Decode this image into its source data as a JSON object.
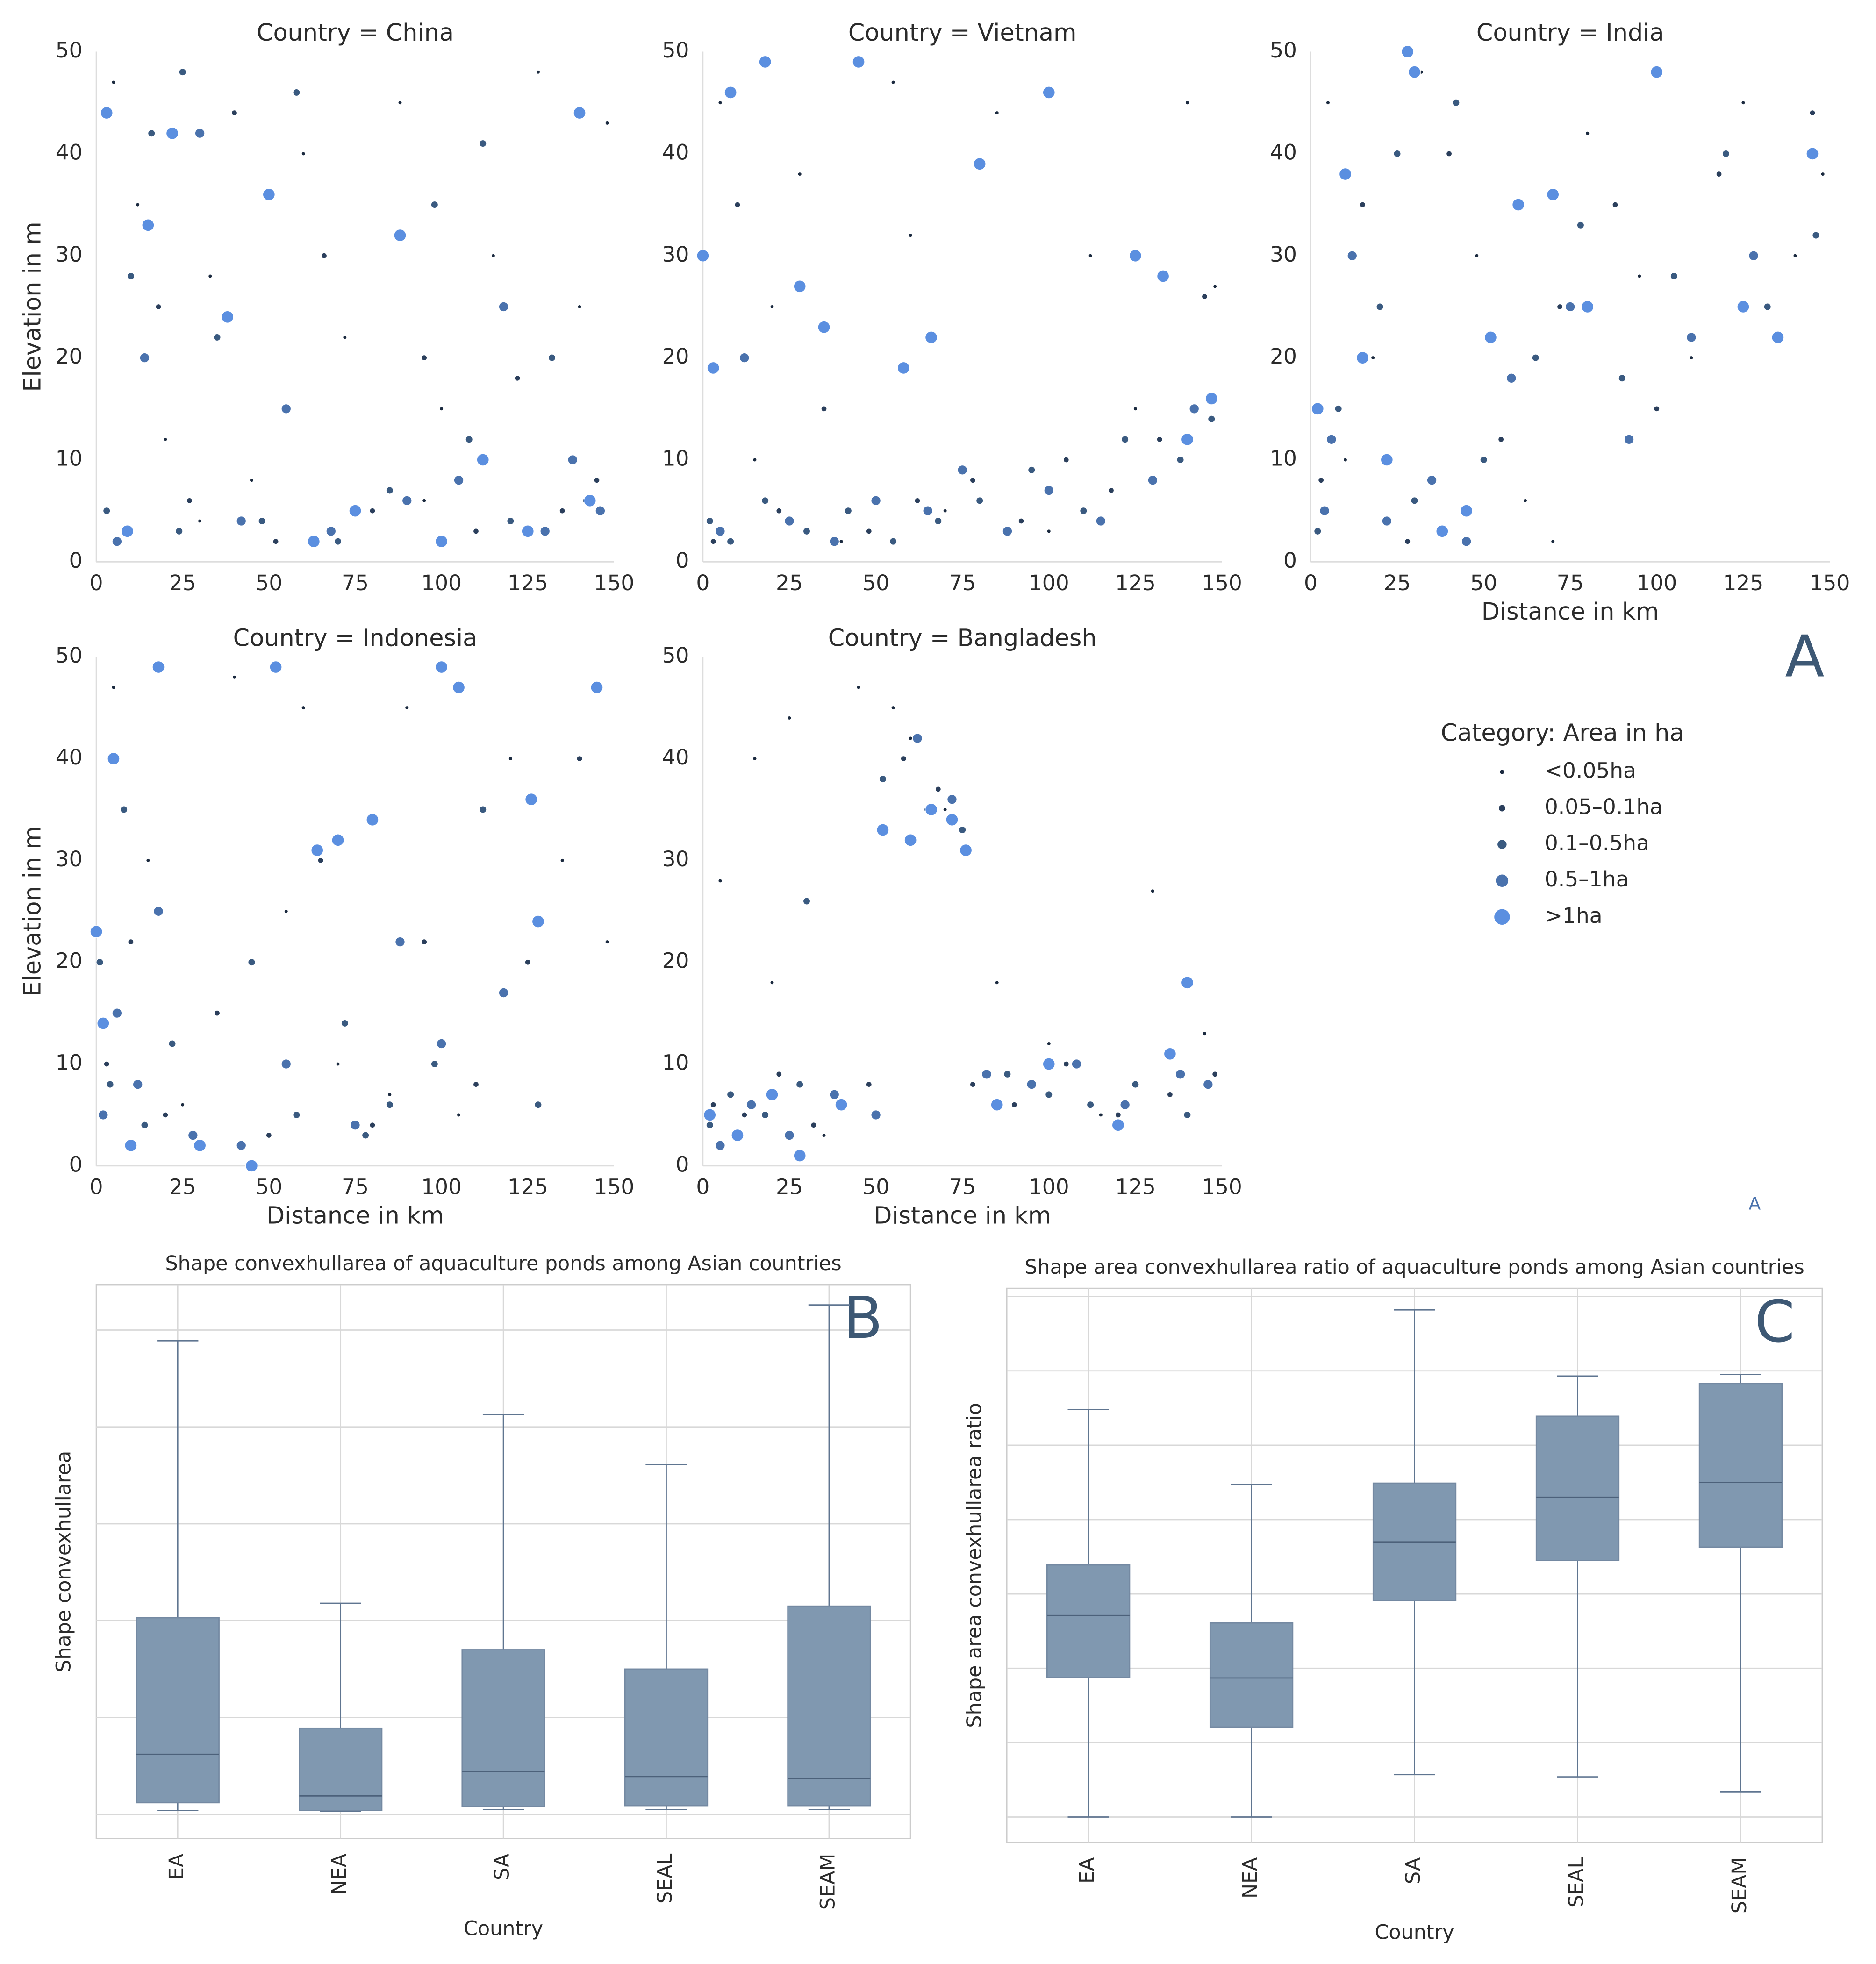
{
  "panel_label": "A",
  "footnote": "A",
  "chart_data": [
    {
      "type": "scatter",
      "title": "Country = China",
      "ylabel": "Elevation in m",
      "xlim": [
        0,
        150
      ],
      "ylim": [
        0,
        50
      ],
      "xticks": [
        0,
        25,
        50,
        75,
        100,
        125,
        150
      ],
      "yticks": [
        0,
        10,
        20,
        30,
        40,
        50
      ],
      "grid": false,
      "legend_title": "Category: Area in ha",
      "series": [
        {
          "name": "<0.05ha",
          "color": "#1b2a3f",
          "x": [
            5,
            12,
            20,
            33,
            45,
            60,
            72,
            88,
            100,
            115,
            128,
            140,
            148,
            30,
            95
          ],
          "y": [
            47,
            35,
            12,
            28,
            8,
            40,
            22,
            45,
            15,
            30,
            48,
            25,
            43,
            4,
            6
          ]
        },
        {
          "name": "0.05–0.1ha",
          "color": "#2b3f5c",
          "x": [
            8,
            18,
            27,
            40,
            52,
            66,
            80,
            95,
            110,
            122,
            135,
            145
          ],
          "y": [
            3,
            25,
            6,
            44,
            2,
            30,
            5,
            20,
            3,
            18,
            5,
            8
          ]
        },
        {
          "name": "0.1–0.5ha",
          "color": "#3a5a80",
          "x": [
            3,
            10,
            16,
            24,
            35,
            48,
            58,
            70,
            85,
            98,
            108,
            120,
            132,
            142,
            25,
            112
          ],
          "y": [
            5,
            28,
            42,
            3,
            22,
            4,
            46,
            2,
            7,
            35,
            12,
            4,
            20,
            6,
            48,
            41
          ]
        },
        {
          "name": "0.5–1ha",
          "color": "#4a72ad",
          "x": [
            6,
            14,
            30,
            42,
            55,
            68,
            90,
            105,
            118,
            130,
            138,
            146
          ],
          "y": [
            2,
            20,
            42,
            4,
            15,
            3,
            6,
            8,
            25,
            3,
            10,
            5
          ]
        },
        {
          "name": ">1ha",
          "color": "#5b8fe0",
          "x": [
            3,
            9,
            15,
            22,
            38,
            50,
            63,
            75,
            88,
            100,
            112,
            125,
            140,
            143
          ],
          "y": [
            44,
            3,
            33,
            42,
            24,
            36,
            2,
            5,
            32,
            2,
            10,
            3,
            44,
            6
          ]
        }
      ]
    },
    {
      "type": "scatter",
      "title": "Country = Vietnam",
      "xlim": [
        0,
        150
      ],
      "ylim": [
        0,
        50
      ],
      "xticks": [
        0,
        25,
        50,
        75,
        100,
        125,
        150
      ],
      "yticks": [
        0,
        10,
        20,
        30,
        40,
        50
      ],
      "grid": false,
      "series": [
        {
          "name": "<0.05ha",
          "color": "#1b2a3f",
          "x": [
            5,
            15,
            28,
            40,
            55,
            70,
            85,
            100,
            112,
            125,
            140,
            148,
            20,
            60
          ],
          "y": [
            45,
            10,
            38,
            2,
            47,
            5,
            44,
            3,
            30,
            15,
            45,
            27,
            25,
            32
          ]
        },
        {
          "name": "0.05–0.1ha",
          "color": "#2b3f5c",
          "x": [
            3,
            10,
            22,
            35,
            48,
            62,
            78,
            92,
            105,
            118,
            132,
            145
          ],
          "y": [
            2,
            35,
            5,
            15,
            3,
            6,
            8,
            4,
            10,
            7,
            12,
            26
          ]
        },
        {
          "name": "0.1–0.5ha",
          "color": "#3a5a80",
          "x": [
            2,
            8,
            18,
            30,
            42,
            55,
            68,
            80,
            95,
            110,
            122,
            138,
            147
          ],
          "y": [
            4,
            2,
            6,
            3,
            5,
            2,
            4,
            6,
            9,
            5,
            12,
            10,
            14
          ]
        },
        {
          "name": "0.5–1ha",
          "color": "#4a72ad",
          "x": [
            5,
            12,
            25,
            38,
            50,
            65,
            75,
            88,
            100,
            115,
            130,
            142
          ],
          "y": [
            3,
            20,
            4,
            2,
            6,
            5,
            9,
            3,
            7,
            4,
            8,
            15
          ]
        },
        {
          "name": ">1ha",
          "color": "#5b8fe0",
          "x": [
            0,
            3,
            8,
            18,
            28,
            35,
            45,
            58,
            66,
            80,
            100,
            125,
            133,
            140,
            147
          ],
          "y": [
            30,
            19,
            46,
            49,
            27,
            23,
            49,
            19,
            22,
            39,
            46,
            30,
            28,
            12,
            16
          ]
        }
      ]
    },
    {
      "type": "scatter",
      "title": "Country = India",
      "xlabel": "Distance in km",
      "xlim": [
        0,
        150
      ],
      "ylim": [
        0,
        50
      ],
      "xticks": [
        0,
        25,
        50,
        75,
        100,
        125,
        150
      ],
      "yticks": [
        0,
        10,
        20,
        30,
        40,
        50
      ],
      "grid": false,
      "series": [
        {
          "name": "<0.05ha",
          "color": "#1b2a3f",
          "x": [
            5,
            18,
            32,
            48,
            62,
            80,
            95,
            110,
            125,
            140,
            148,
            70,
            10
          ],
          "y": [
            45,
            20,
            48,
            30,
            6,
            42,
            28,
            20,
            45,
            30,
            38,
            2,
            10
          ]
        },
        {
          "name": "0.05–0.1ha",
          "color": "#2b3f5c",
          "x": [
            3,
            15,
            28,
            40,
            55,
            72,
            88,
            100,
            118,
            135,
            145
          ],
          "y": [
            8,
            35,
            2,
            40,
            12,
            25,
            35,
            15,
            38,
            22,
            44
          ]
        },
        {
          "name": "0.1–0.5ha",
          "color": "#3a5a80",
          "x": [
            2,
            8,
            20,
            30,
            42,
            50,
            65,
            78,
            90,
            105,
            120,
            132,
            146,
            25
          ],
          "y": [
            3,
            15,
            25,
            6,
            45,
            10,
            20,
            33,
            18,
            28,
            40,
            25,
            32,
            40
          ]
        },
        {
          "name": "0.5–1ha",
          "color": "#4a72ad",
          "x": [
            4,
            12,
            22,
            35,
            45,
            58,
            75,
            92,
            110,
            128,
            6
          ],
          "y": [
            5,
            30,
            4,
            8,
            2,
            18,
            25,
            12,
            22,
            30,
            12
          ]
        },
        {
          "name": ">1ha",
          "color": "#5b8fe0",
          "x": [
            2,
            10,
            15,
            22,
            30,
            38,
            45,
            52,
            60,
            70,
            80,
            100,
            125,
            135,
            145,
            28
          ],
          "y": [
            15,
            38,
            20,
            10,
            48,
            3,
            5,
            22,
            35,
            36,
            25,
            48,
            25,
            22,
            40,
            50
          ]
        }
      ]
    },
    {
      "type": "scatter",
      "title": "Country = Indonesia",
      "xlabel": "Distance in km",
      "ylabel": "Elevation in m",
      "xlim": [
        0,
        150
      ],
      "ylim": [
        0,
        50
      ],
      "xticks": [
        0,
        25,
        50,
        75,
        100,
        125,
        150
      ],
      "yticks": [
        0,
        10,
        20,
        30,
        40,
        50
      ],
      "grid": false,
      "series": [
        {
          "name": "<0.05ha",
          "color": "#1b2a3f",
          "x": [
            5,
            15,
            25,
            40,
            55,
            70,
            90,
            105,
            120,
            135,
            148,
            60,
            85
          ],
          "y": [
            47,
            30,
            6,
            48,
            25,
            10,
            45,
            5,
            40,
            30,
            22,
            45,
            7
          ]
        },
        {
          "name": "0.05–0.1ha",
          "color": "#2b3f5c",
          "x": [
            3,
            10,
            20,
            35,
            50,
            65,
            80,
            95,
            110,
            125,
            140
          ],
          "y": [
            10,
            22,
            5,
            15,
            3,
            30,
            4,
            22,
            8,
            20,
            40
          ]
        },
        {
          "name": "0.1–0.5ha",
          "color": "#3a5a80",
          "x": [
            1,
            4,
            8,
            14,
            22,
            30,
            45,
            58,
            72,
            78,
            85,
            98,
            112,
            128
          ],
          "y": [
            20,
            8,
            35,
            4,
            12,
            2,
            20,
            5,
            14,
            3,
            6,
            10,
            35,
            6
          ]
        },
        {
          "name": "0.5–1ha",
          "color": "#4a72ad",
          "x": [
            2,
            6,
            12,
            18,
            28,
            42,
            55,
            75,
            88,
            100,
            118
          ],
          "y": [
            5,
            15,
            8,
            25,
            3,
            2,
            10,
            4,
            22,
            12,
            17
          ]
        },
        {
          "name": ">1ha",
          "color": "#5b8fe0",
          "x": [
            0,
            2,
            5,
            10,
            18,
            30,
            45,
            52,
            64,
            70,
            80,
            100,
            105,
            126,
            128,
            145
          ],
          "y": [
            23,
            14,
            40,
            2,
            49,
            2,
            0,
            49,
            31,
            32,
            34,
            49,
            47,
            36,
            24,
            47
          ]
        }
      ]
    },
    {
      "type": "scatter",
      "title": "Country = Bangladesh",
      "xlabel": "Distance in km",
      "xlim": [
        0,
        150
      ],
      "ylim": [
        0,
        50
      ],
      "xticks": [
        0,
        25,
        50,
        75,
        100,
        125,
        150
      ],
      "yticks": [
        0,
        10,
        20,
        30,
        40,
        50
      ],
      "grid": false,
      "series": [
        {
          "name": "<0.05ha",
          "color": "#1b2a3f",
          "x": [
            5,
            15,
            25,
            35,
            45,
            55,
            70,
            85,
            100,
            115,
            130,
            145,
            20,
            60
          ],
          "y": [
            28,
            40,
            44,
            3,
            47,
            45,
            35,
            18,
            12,
            5,
            27,
            13,
            18,
            42
          ]
        },
        {
          "name": "0.05–0.1ha",
          "color": "#2b3f5c",
          "x": [
            3,
            12,
            22,
            32,
            48,
            58,
            68,
            78,
            90,
            105,
            120,
            135,
            148
          ],
          "y": [
            6,
            5,
            9,
            4,
            8,
            40,
            37,
            8,
            6,
            10,
            5,
            7,
            9
          ]
        },
        {
          "name": "0.1–0.5ha",
          "color": "#3a5a80",
          "x": [
            2,
            8,
            18,
            28,
            40,
            52,
            65,
            75,
            88,
            100,
            112,
            125,
            140,
            30
          ],
          "y": [
            4,
            7,
            5,
            8,
            6,
            38,
            35,
            33,
            9,
            7,
            6,
            8,
            5,
            26
          ]
        },
        {
          "name": "0.5–1ha",
          "color": "#4a72ad",
          "x": [
            5,
            14,
            25,
            38,
            50,
            62,
            72,
            82,
            95,
            108,
            122,
            138,
            146
          ],
          "y": [
            2,
            6,
            3,
            7,
            5,
            42,
            36,
            9,
            8,
            10,
            6,
            9,
            8
          ]
        },
        {
          "name": ">1ha",
          "color": "#5b8fe0",
          "x": [
            2,
            10,
            20,
            28,
            40,
            52,
            60,
            66,
            72,
            76,
            85,
            100,
            120,
            135,
            140
          ],
          "y": [
            5,
            3,
            7,
            1,
            6,
            33,
            32,
            35,
            34,
            31,
            6,
            10,
            4,
            11,
            18
          ]
        }
      ]
    },
    {
      "type": "box",
      "title": "Shape convexhullarea of aquaculture ponds among Asian countries",
      "annotation": "B",
      "xlabel": "Country",
      "ylabel": "Shape convexhullarea",
      "color": "#8098b0",
      "ylim": [
        -0.25,
        5.47
      ],
      "ygrid": [
        0,
        1,
        2,
        3,
        4,
        5
      ],
      "categories": [
        "EA",
        "NEA",
        "SA",
        "SEAL",
        "SEAM"
      ],
      "boxes": [
        {
          "low": 0.04,
          "q1": 0.12,
          "median": 0.62,
          "q3": 2.03,
          "high": 4.89
        },
        {
          "low": 0.03,
          "q1": 0.04,
          "median": 0.19,
          "q3": 0.89,
          "high": 2.18
        },
        {
          "low": 0.05,
          "q1": 0.08,
          "median": 0.44,
          "q3": 1.7,
          "high": 4.13
        },
        {
          "low": 0.05,
          "q1": 0.09,
          "median": 0.39,
          "q3": 1.5,
          "high": 3.61
        },
        {
          "low": 0.05,
          "q1": 0.09,
          "median": 0.37,
          "q3": 2.15,
          "high": 5.26
        }
      ]
    },
    {
      "type": "box",
      "title": "Shape area convexhullarea ratio of aquaculture ponds among Asian countries",
      "annotation": "C",
      "xlabel": "Country",
      "ylabel": "Shape area convexhullarea ratio",
      "color": "#8098b0",
      "ylim": [
        -0.34,
        7.11
      ],
      "ygrid": [
        0,
        1,
        2,
        3,
        4,
        5,
        6,
        7
      ],
      "categories": [
        "EA",
        "NEA",
        "SA",
        "SEAL",
        "SEAM"
      ],
      "boxes": [
        {
          "low": 0,
          "q1": 1.88,
          "median": 2.71,
          "q3": 3.39,
          "high": 5.48
        },
        {
          "low": 0,
          "q1": 1.21,
          "median": 1.87,
          "q3": 2.61,
          "high": 4.47
        },
        {
          "low": 0.57,
          "q1": 2.91,
          "median": 3.7,
          "q3": 4.49,
          "high": 6.82
        },
        {
          "low": 0.54,
          "q1": 3.45,
          "median": 4.3,
          "q3": 5.39,
          "high": 5.93
        },
        {
          "low": 0.34,
          "q1": 3.63,
          "median": 4.5,
          "q3": 5.83,
          "high": 5.95
        }
      ]
    }
  ]
}
